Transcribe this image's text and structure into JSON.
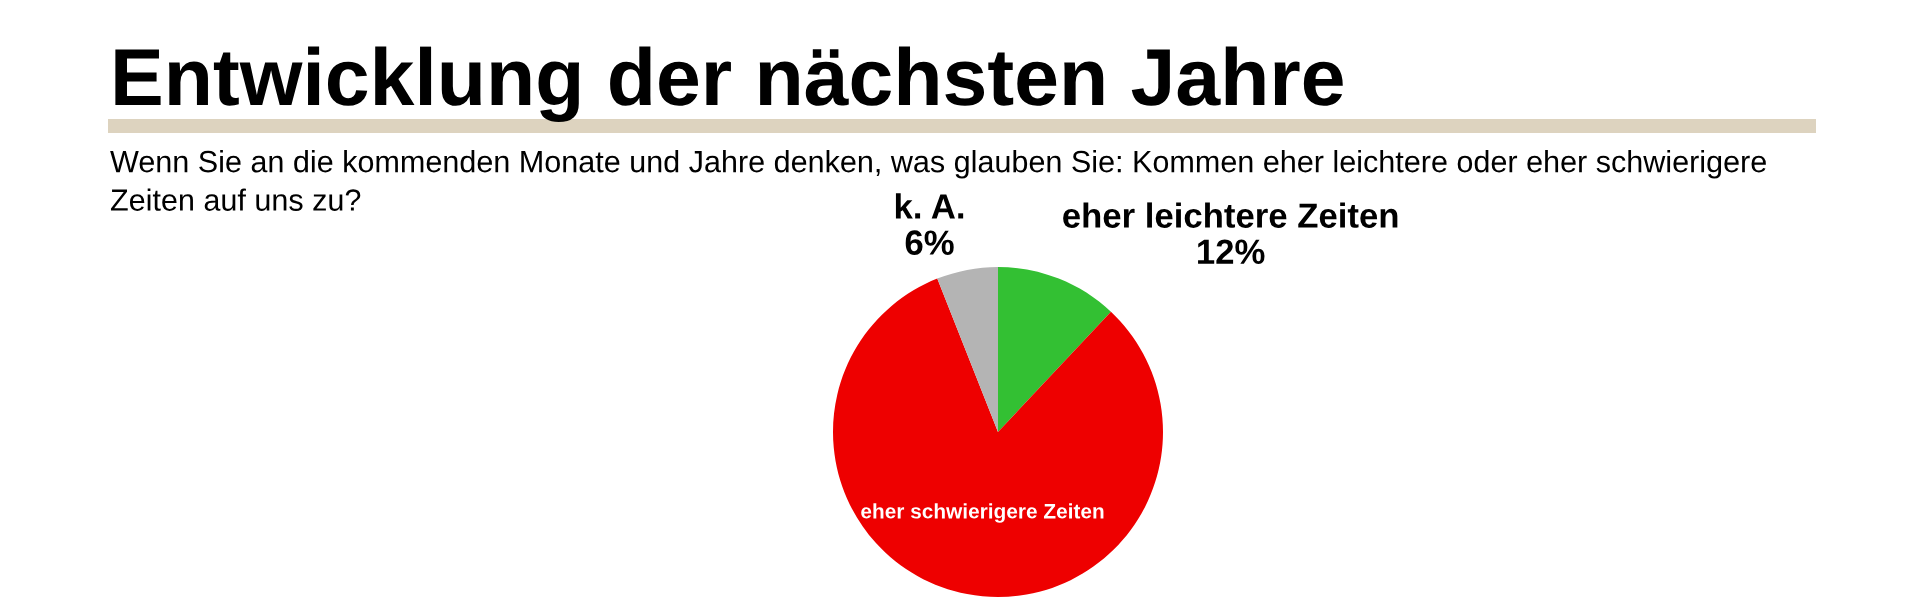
{
  "chart_data": {
    "type": "pie",
    "title": "Entwicklung der nächsten Jahre",
    "subtitle": "Wenn Sie an die kommenden Monate und Jahre denken, was glauben Sie: Kommen eher leichtere oder eher schwierigere Zeiten auf uns zu?",
    "categories": [
      "eher leichtere Zeiten",
      "eher schwierigere Zeiten",
      "k. A."
    ],
    "values": [
      12,
      82,
      6
    ],
    "value_labels": [
      "12%",
      null,
      "6%"
    ],
    "colors": [
      "#33c033",
      "#ee0000",
      "#b4b4b4"
    ]
  }
}
